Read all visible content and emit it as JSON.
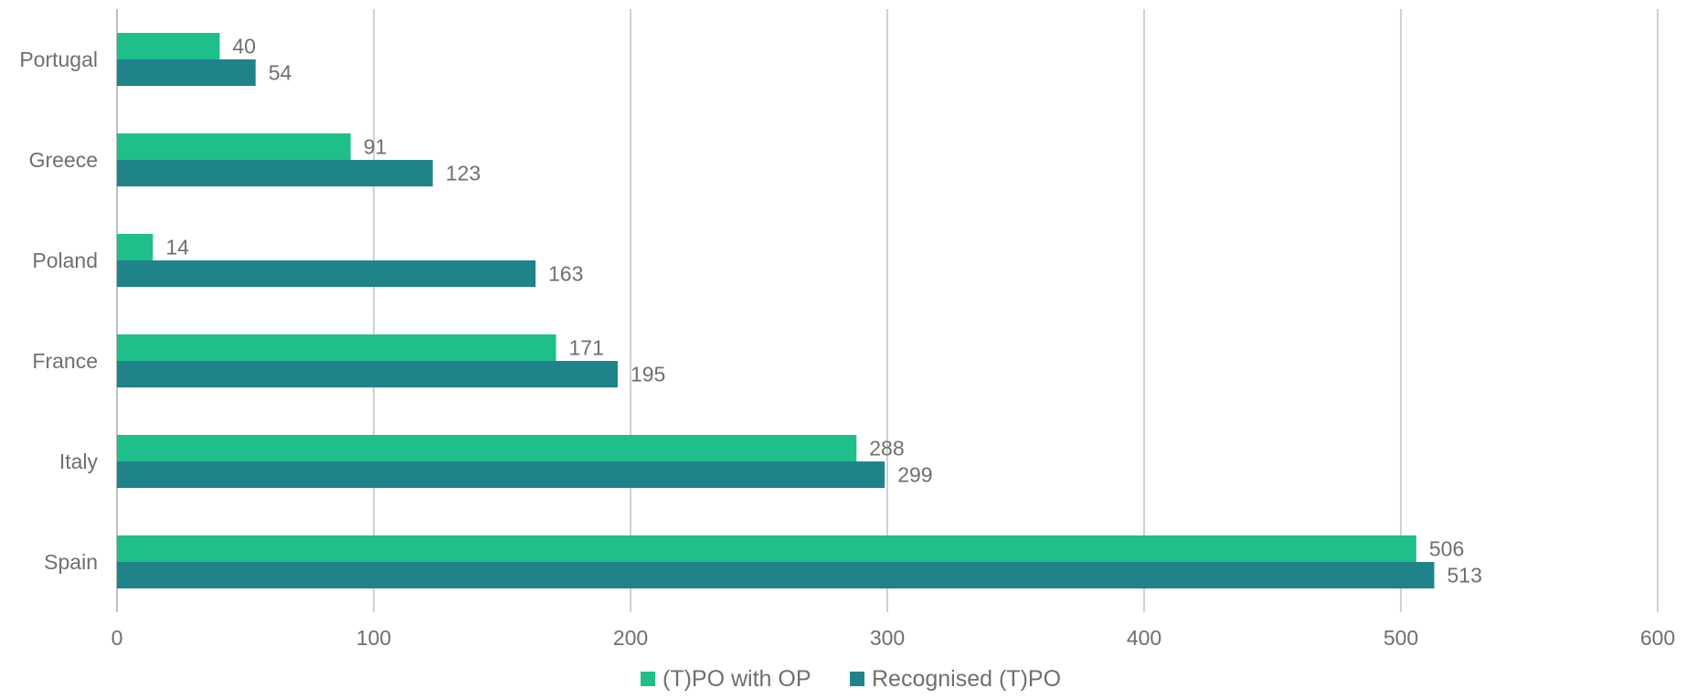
{
  "chart_data": {
    "type": "bar",
    "orientation": "horizontal",
    "categories": [
      "Portugal",
      "Greece",
      "Poland",
      "France",
      "Italy",
      "Spain"
    ],
    "series": [
      {
        "name": "(T)PO with OP",
        "values": [
          40,
          91,
          14,
          171,
          288,
          506
        ],
        "color": "#1ebf8a"
      },
      {
        "name": "Recognised (T)PO",
        "values": [
          54,
          123,
          163,
          195,
          299,
          513
        ],
        "color": "#1f8489"
      }
    ],
    "xlim": [
      0,
      600
    ],
    "xticks": [
      0,
      100,
      200,
      300,
      400,
      500,
      600
    ],
    "grid": true,
    "legend_position": "bottom",
    "title": "",
    "xlabel": "",
    "ylabel": ""
  }
}
